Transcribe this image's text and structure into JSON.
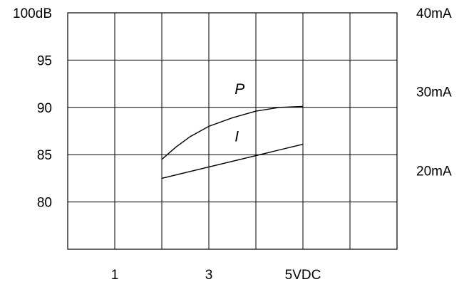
{
  "chart_data": {
    "type": "line",
    "x_range": [
      0,
      7
    ],
    "y_range_left": [
      75,
      100
    ],
    "y_range_right": [
      10,
      40
    ],
    "grid": true,
    "x_ticks": [
      {
        "value": 1,
        "label": "1"
      },
      {
        "value": 3,
        "label": "3"
      },
      {
        "value": 5,
        "label": "5VDC"
      }
    ],
    "y_ticks_left": [
      {
        "value": 100,
        "label": "100dB"
      },
      {
        "value": 95,
        "label": "95"
      },
      {
        "value": 90,
        "label": "90"
      },
      {
        "value": 85,
        "label": "85"
      },
      {
        "value": 80,
        "label": "80"
      }
    ],
    "y_ticks_right": [
      {
        "value": 40,
        "label": "40mA"
      },
      {
        "value": 30,
        "label": "30mA"
      },
      {
        "value": 20,
        "label": "20mA"
      }
    ],
    "series": [
      {
        "name": "P",
        "axis": "left",
        "label_at": {
          "x": 3.55,
          "y": 91.4
        },
        "points": [
          {
            "x": 2.0,
            "y": 84.5
          },
          {
            "x": 2.3,
            "y": 85.8
          },
          {
            "x": 2.6,
            "y": 86.9
          },
          {
            "x": 3.0,
            "y": 88.0
          },
          {
            "x": 3.5,
            "y": 88.9
          },
          {
            "x": 4.0,
            "y": 89.6
          },
          {
            "x": 4.5,
            "y": 90.0
          },
          {
            "x": 5.0,
            "y": 90.1
          }
        ]
      },
      {
        "name": "I",
        "axis": "left",
        "label_at": {
          "x": 3.55,
          "y": 86.4
        },
        "points": [
          {
            "x": 2.0,
            "y": 82.5
          },
          {
            "x": 5.0,
            "y": 86.1
          }
        ]
      }
    ]
  }
}
